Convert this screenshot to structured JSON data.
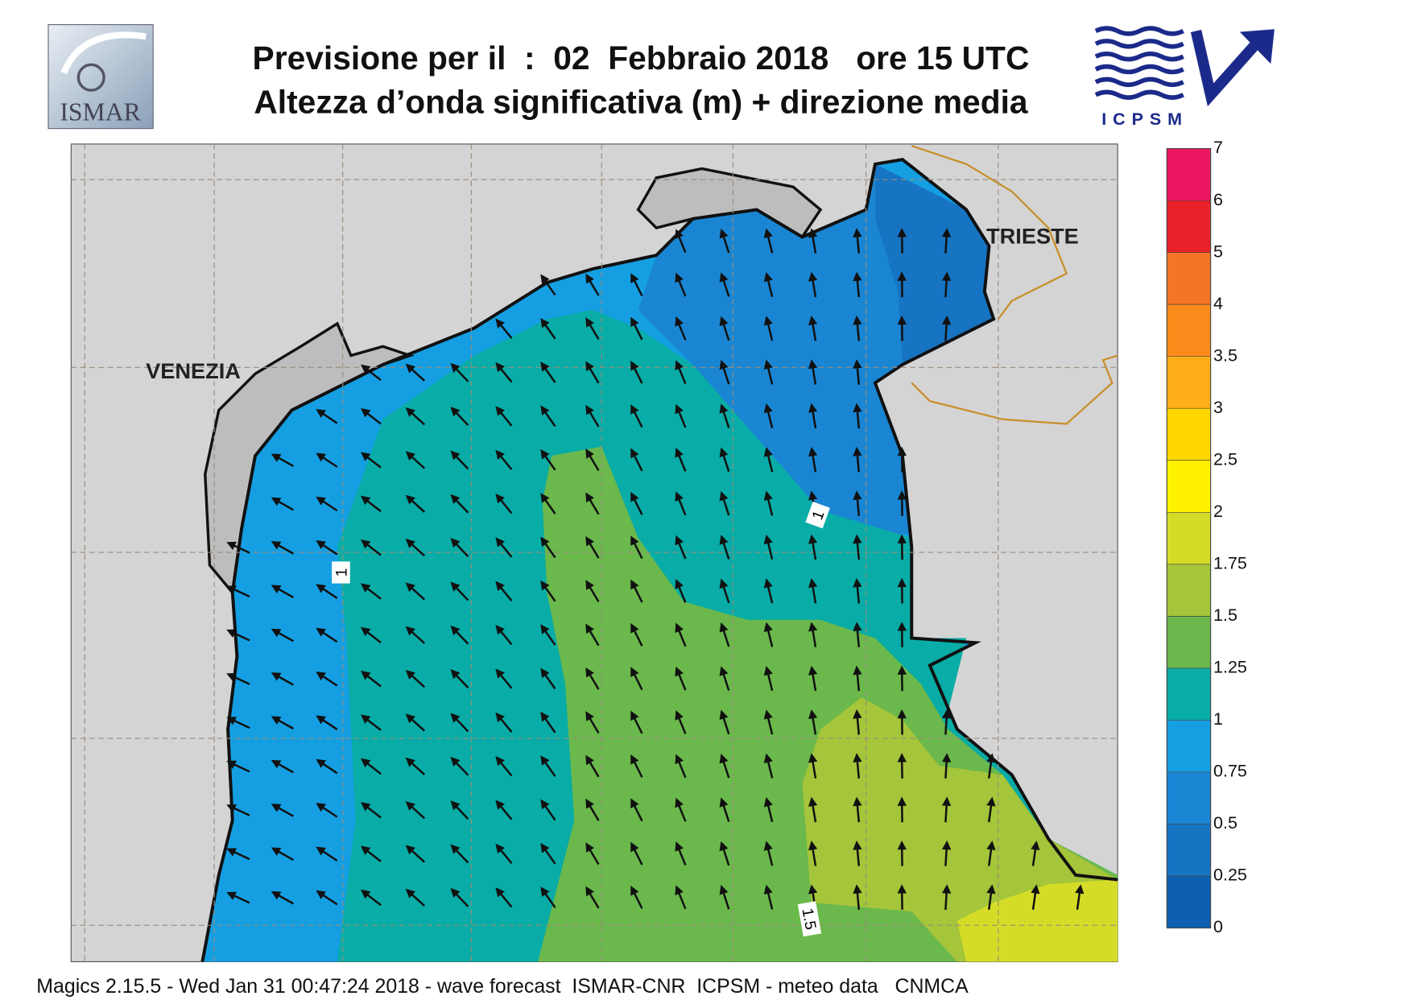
{
  "header": {
    "title_line1": "Previsione per il  :  02  Febbraio 2018   ore 15 UTC",
    "title_line2": "Altezza d’onda significativa (m) + direzione media",
    "logo_left": "ISMAR",
    "logo_right": "ICPSM"
  },
  "map": {
    "cities": [
      "VENEZIA",
      "TRIESTE"
    ],
    "contour_labels": [
      1,
      1,
      1.5
    ]
  },
  "colorbar": {
    "levels": [
      0,
      0.25,
      0.5,
      0.75,
      1,
      1.25,
      1.5,
      1.75,
      2,
      2.5,
      3,
      3.5,
      4,
      5,
      6,
      7
    ],
    "colors": [
      "#0d5fb0",
      "#1674c2",
      "#1a86d3",
      "#159fe2",
      "#09aca6",
      "#6bb84c",
      "#a5c53a",
      "#d5dc27",
      "#fff200",
      "#ffd600",
      "#ffae1a",
      "#fb8c1c",
      "#f47526",
      "#e92128",
      "#ec1563"
    ]
  },
  "footer": "Magics 2.15.5 - Wed Jan 31 00:47:24 2018 - wave forecast  ISMAR-CNR  ICPSM - meteo data   CNMCA"
}
